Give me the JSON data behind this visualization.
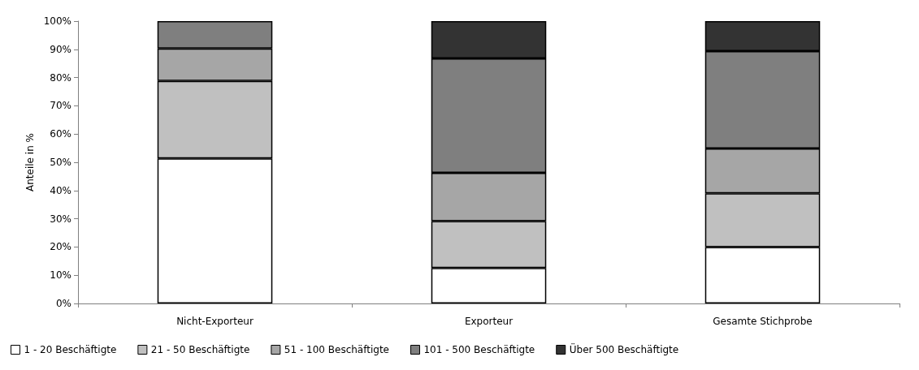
{
  "chart_data": {
    "type": "bar",
    "stacked": true,
    "ylabel": "Anteile in %",
    "categories": [
      "Nicht-Exporteur",
      "Exporteur",
      "Gesamte Stichprobe"
    ],
    "series": [
      {
        "name": "1 - 20 Beschäftigte",
        "color": "#ffffff",
        "values": [
          51.4,
          12.6,
          20.0
        ]
      },
      {
        "name": "21 - 50 Beschäftigte",
        "color": "#c0c0c0",
        "values": [
          27.4,
          16.6,
          19.0
        ]
      },
      {
        "name": "51 - 100 Beschäftigte",
        "color": "#a6a6a6",
        "values": [
          11.5,
          17.1,
          15.9
        ]
      },
      {
        "name": "101 - 500 Beschäftigte",
        "color": "#7f7f7f",
        "values": [
          9.7,
          40.5,
          34.5
        ]
      },
      {
        "name": "Über 500 Beschäftigte",
        "color": "#333333",
        "values": [
          0,
          13.2,
          10.6
        ]
      }
    ],
    "ylim": [
      0,
      100
    ],
    "yticks": [
      {
        "value": 0,
        "label": "0%"
      },
      {
        "value": 10,
        "label": "10%"
      },
      {
        "value": 20,
        "label": "20%"
      },
      {
        "value": 30,
        "label": "30%"
      },
      {
        "value": 40,
        "label": "40%"
      },
      {
        "value": 50,
        "label": "50%"
      },
      {
        "value": 60,
        "label": "60%"
      },
      {
        "value": 70,
        "label": "70%"
      },
      {
        "value": 80,
        "label": "80%"
      },
      {
        "value": 90,
        "label": "90%"
      },
      {
        "value": 100,
        "label": "100%"
      }
    ],
    "grid": false,
    "legend": "bottom"
  }
}
